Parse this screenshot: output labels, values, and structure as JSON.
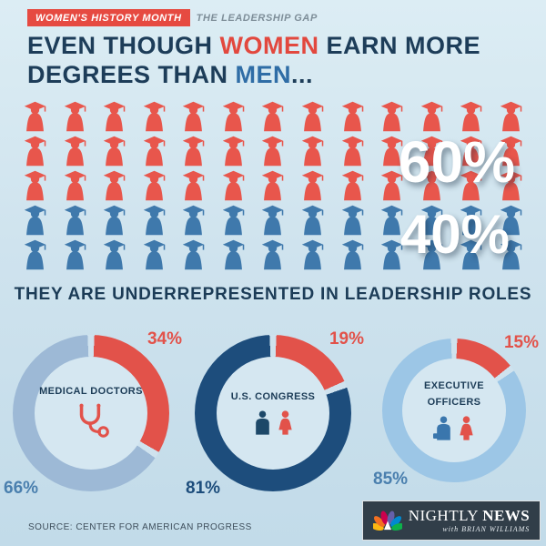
{
  "banner": {
    "title": "WOMEN'S HISTORY MONTH",
    "subtitle": "THE LEADERSHIP GAP"
  },
  "headline": {
    "part1": "EVEN THOUGH ",
    "women": "WOMEN",
    "part2": " EARN MORE DEGREES THAN ",
    "men": "MEN",
    "part3": "..."
  },
  "pictogram": {
    "women_label": "60%",
    "men_label": "40%",
    "colors": {
      "women": "#e8564c",
      "men": "#3f79ac"
    },
    "rows": [
      {
        "type": "women",
        "count": 13
      },
      {
        "type": "women",
        "count": 13
      },
      {
        "type": "women",
        "count": 13
      },
      {
        "type": "men",
        "count": 13
      },
      {
        "type": "men",
        "count": 13
      }
    ]
  },
  "subheadline": "THEY ARE UNDERREPRESENTED IN LEADERSHIP ROLES",
  "donuts": [
    {
      "id": "medical-doctors",
      "label_lines": [
        "MEDICAL DOCTORS"
      ],
      "women_pct": 34,
      "men_pct": 66,
      "women_label": "34%",
      "men_label": "66%",
      "ring_red": "#e2524a",
      "ring_blue": "#9db9d6",
      "men_label_color": "#4a7fae",
      "icon": "stethoscope",
      "icon_colors": {
        "primary": "#e2524a"
      }
    },
    {
      "id": "us-congress",
      "label_lines": [
        "U.S. CONGRESS"
      ],
      "women_pct": 19,
      "men_pct": 81,
      "women_label": "19%",
      "men_label": "81%",
      "ring_red": "#e2524a",
      "ring_blue": "#1d4d7c",
      "men_label_color": "#1d4d7c",
      "icon": "people",
      "icon_colors": {
        "man": "#1d4868",
        "woman": "#e2524a"
      }
    },
    {
      "id": "executive-officers",
      "label_lines": [
        "EXECUTIVE",
        "OFFICERS"
      ],
      "women_pct": 15,
      "men_pct": 85,
      "women_label": "15%",
      "men_label": "85%",
      "ring_red": "#e2524a",
      "ring_blue": "#9cc6e6",
      "men_label_color": "#4a7fae",
      "icon": "people-briefcase",
      "icon_colors": {
        "man": "#3a76ad",
        "woman": "#e2524a"
      }
    }
  ],
  "source": "SOURCE: CENTER FOR AMERICAN PROGRESS",
  "logo": {
    "word1": "NIGHTLY",
    "word2": "NEWS",
    "tagline": "with BRIAN WILLIAMS"
  },
  "chart_data": [
    {
      "type": "pictogram",
      "title": "Degrees earned by gender",
      "categories": [
        "Women",
        "Men"
      ],
      "values": [
        60,
        40
      ],
      "unit": "%"
    },
    {
      "type": "pie",
      "title": "Medical Doctors",
      "categories": [
        "Women",
        "Men"
      ],
      "values": [
        34,
        66
      ],
      "unit": "%"
    },
    {
      "type": "pie",
      "title": "U.S. Congress",
      "categories": [
        "Women",
        "Men"
      ],
      "values": [
        19,
        81
      ],
      "unit": "%"
    },
    {
      "type": "pie",
      "title": "Executive Officers",
      "categories": [
        "Women",
        "Men"
      ],
      "values": [
        15,
        85
      ],
      "unit": "%"
    }
  ]
}
